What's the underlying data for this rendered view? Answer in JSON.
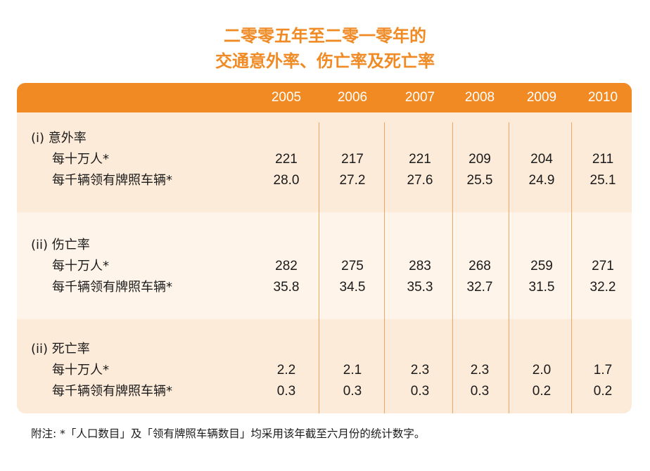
{
  "title": {
    "line1": "二零零五年至二零一零年的",
    "line2": "交通意外率、伤亡率及死亡率"
  },
  "chart_data": {
    "type": "table",
    "columns": [
      "2005",
      "2006",
      "2007",
      "2008",
      "2009",
      "2010"
    ],
    "sections": [
      {
        "heading": "(i)  意外率",
        "rows": [
          {
            "label": "每十万人*",
            "values": [
              "221",
              "217",
              "221",
              "209",
              "204",
              "211"
            ]
          },
          {
            "label": "每千辆领有牌照车辆*",
            "values": [
              "28.0",
              "27.2",
              "27.6",
              "25.5",
              "24.9",
              "25.1"
            ]
          }
        ]
      },
      {
        "heading": "(ii) 伤亡率",
        "rows": [
          {
            "label": "每十万人*",
            "values": [
              "282",
              "275",
              "283",
              "268",
              "259",
              "271"
            ]
          },
          {
            "label": "每千辆领有牌照车辆*",
            "values": [
              "35.8",
              "34.5",
              "35.3",
              "32.7",
              "31.5",
              "32.2"
            ]
          }
        ]
      },
      {
        "heading": "(ii) 死亡率",
        "rows": [
          {
            "label": "每十万人*",
            "values": [
              "2.2",
              "2.1",
              "2.3",
              "2.3",
              "2.0",
              "1.7"
            ]
          },
          {
            "label": "每千辆领有牌照车辆*",
            "values": [
              "0.3",
              "0.3",
              "0.3",
              "0.3",
              "0.2",
              "0.2"
            ]
          }
        ]
      }
    ]
  },
  "footnote": "附注: *「人口数目」及「领有牌照车辆数目」均采用该年截至六月份的统计数字。",
  "colors": {
    "accent": "#f28a24",
    "title": "#f08a24",
    "band_dark": "#fdebd9",
    "band_light": "#fef4e9"
  }
}
